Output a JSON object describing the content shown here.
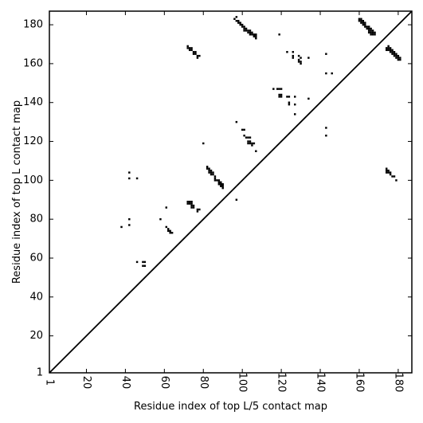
{
  "chart_data": {
    "type": "scatter",
    "title": "",
    "xlabel": "Residue index of top L/5 contact map",
    "ylabel": "Residue index of top L contact map",
    "xlim": [
      1,
      187
    ],
    "ylim": [
      1,
      187
    ],
    "xticks": [
      1,
      20,
      40,
      60,
      80,
      100,
      120,
      140,
      160,
      180
    ],
    "yticks": [
      1,
      20,
      40,
      60,
      80,
      100,
      120,
      140,
      160,
      180
    ],
    "xtick_rotation": -90,
    "grid": false,
    "diagonal": true,
    "marker": "square",
    "colors": {
      "points": "#000000",
      "axes": "#000000",
      "background": "#ffffff"
    },
    "series": [
      {
        "name": "",
        "points": [
          [
            96,
            183
          ],
          [
            97,
            184
          ],
          [
            97,
            182
          ],
          [
            98,
            182
          ],
          [
            98,
            181
          ],
          [
            99,
            181
          ],
          [
            99,
            180
          ],
          [
            100,
            180
          ],
          [
            100,
            179
          ],
          [
            101,
            179
          ],
          [
            101,
            178
          ],
          [
            101,
            177
          ],
          [
            102,
            178
          ],
          [
            102,
            177
          ],
          [
            103,
            177
          ],
          [
            103,
            176
          ],
          [
            104,
            177
          ],
          [
            104,
            176
          ],
          [
            104,
            175
          ],
          [
            105,
            176
          ],
          [
            105,
            175
          ],
          [
            106,
            175
          ],
          [
            106,
            174
          ],
          [
            107,
            175
          ],
          [
            107,
            174
          ],
          [
            107,
            173
          ],
          [
            119,
            175
          ],
          [
            123,
            166
          ],
          [
            126,
            166
          ],
          [
            126,
            164
          ],
          [
            126,
            163
          ],
          [
            129,
            164
          ],
          [
            129,
            162
          ],
          [
            129,
            161
          ],
          [
            130,
            163
          ],
          [
            130,
            161
          ],
          [
            130,
            160
          ],
          [
            134,
            163
          ],
          [
            72,
            169
          ],
          [
            72,
            168
          ],
          [
            73,
            168
          ],
          [
            73,
            167
          ],
          [
            74,
            168
          ],
          [
            74,
            167
          ],
          [
            75,
            166
          ],
          [
            75,
            165
          ],
          [
            76,
            166
          ],
          [
            76,
            165
          ],
          [
            77,
            164
          ],
          [
            77,
            163
          ],
          [
            78,
            164
          ],
          [
            143,
            165
          ],
          [
            143,
            155
          ],
          [
            146,
            155
          ],
          [
            116,
            147
          ],
          [
            118,
            147
          ],
          [
            119,
            147
          ],
          [
            119,
            144
          ],
          [
            120,
            147
          ],
          [
            120,
            144
          ],
          [
            119,
            143
          ],
          [
            120,
            143
          ],
          [
            123,
            143
          ],
          [
            124,
            143
          ],
          [
            124,
            140
          ],
          [
            124,
            139
          ],
          [
            127,
            143
          ],
          [
            127,
            139
          ],
          [
            127,
            134
          ],
          [
            134,
            142
          ],
          [
            97,
            130
          ],
          [
            143,
            127
          ],
          [
            143,
            123
          ],
          [
            100,
            126
          ],
          [
            101,
            126
          ],
          [
            101,
            123
          ],
          [
            102,
            122
          ],
          [
            103,
            122
          ],
          [
            104,
            122
          ],
          [
            103,
            120
          ],
          [
            103,
            119
          ],
          [
            104,
            120
          ],
          [
            104,
            119
          ],
          [
            105,
            119
          ],
          [
            106,
            119
          ],
          [
            105,
            118
          ],
          [
            107,
            115
          ],
          [
            80,
            119
          ],
          [
            82,
            107
          ],
          [
            82,
            106
          ],
          [
            83,
            106
          ],
          [
            83,
            105
          ],
          [
            83,
            104
          ],
          [
            84,
            105
          ],
          [
            84,
            104
          ],
          [
            84,
            103
          ],
          [
            85,
            104
          ],
          [
            85,
            103
          ],
          [
            86,
            102
          ],
          [
            86,
            101
          ],
          [
            86,
            100
          ],
          [
            87,
            100
          ],
          [
            88,
            100
          ],
          [
            88,
            99
          ],
          [
            88,
            98
          ],
          [
            89,
            99
          ],
          [
            89,
            98
          ],
          [
            89,
            97
          ],
          [
            90,
            98
          ],
          [
            90,
            97
          ],
          [
            90,
            96
          ],
          [
            97,
            90
          ],
          [
            42,
            104
          ],
          [
            42,
            101
          ],
          [
            46,
            101
          ],
          [
            72,
            89
          ],
          [
            72,
            88
          ],
          [
            73,
            89
          ],
          [
            73,
            88
          ],
          [
            74,
            89
          ],
          [
            74,
            88
          ],
          [
            74,
            87
          ],
          [
            74,
            86
          ],
          [
            75,
            87
          ],
          [
            75,
            86
          ],
          [
            77,
            85
          ],
          [
            77,
            84
          ],
          [
            78,
            85
          ],
          [
            61,
            86
          ],
          [
            58,
            80
          ],
          [
            61,
            76
          ],
          [
            62,
            75
          ],
          [
            62,
            74
          ],
          [
            63,
            74
          ],
          [
            63,
            73
          ],
          [
            64,
            73
          ],
          [
            42,
            80
          ],
          [
            42,
            77
          ],
          [
            38,
            76
          ],
          [
            46,
            58
          ],
          [
            49,
            58
          ],
          [
            50,
            58
          ],
          [
            49,
            56
          ],
          [
            50,
            56
          ],
          [
            160,
            183
          ],
          [
            160,
            182
          ],
          [
            161,
            183
          ],
          [
            161,
            182
          ],
          [
            161,
            181
          ],
          [
            162,
            182
          ],
          [
            162,
            181
          ],
          [
            162,
            180
          ],
          [
            163,
            181
          ],
          [
            163,
            180
          ],
          [
            163,
            179
          ],
          [
            164,
            179
          ],
          [
            164,
            178
          ],
          [
            165,
            179
          ],
          [
            165,
            178
          ],
          [
            165,
            177
          ],
          [
            165,
            176
          ],
          [
            166,
            178
          ],
          [
            166,
            177
          ],
          [
            166,
            176
          ],
          [
            166,
            175
          ],
          [
            167,
            177
          ],
          [
            167,
            176
          ],
          [
            167,
            175
          ],
          [
            168,
            176
          ],
          [
            168,
            175
          ],
          [
            174,
            168
          ],
          [
            174,
            167
          ],
          [
            175,
            169
          ],
          [
            175,
            168
          ],
          [
            175,
            167
          ],
          [
            176,
            168
          ],
          [
            176,
            167
          ],
          [
            176,
            166
          ],
          [
            177,
            167
          ],
          [
            177,
            166
          ],
          [
            177,
            165
          ],
          [
            178,
            166
          ],
          [
            178,
            165
          ],
          [
            178,
            164
          ],
          [
            179,
            165
          ],
          [
            179,
            164
          ],
          [
            179,
            163
          ],
          [
            180,
            164
          ],
          [
            180,
            163
          ],
          [
            180,
            162
          ],
          [
            181,
            163
          ],
          [
            181,
            162
          ],
          [
            174,
            106
          ],
          [
            174,
            105
          ],
          [
            174,
            104
          ],
          [
            175,
            105
          ],
          [
            175,
            104
          ],
          [
            176,
            104
          ],
          [
            176,
            103
          ],
          [
            177,
            102
          ],
          [
            178,
            102
          ],
          [
            179,
            100
          ]
        ]
      }
    ]
  }
}
